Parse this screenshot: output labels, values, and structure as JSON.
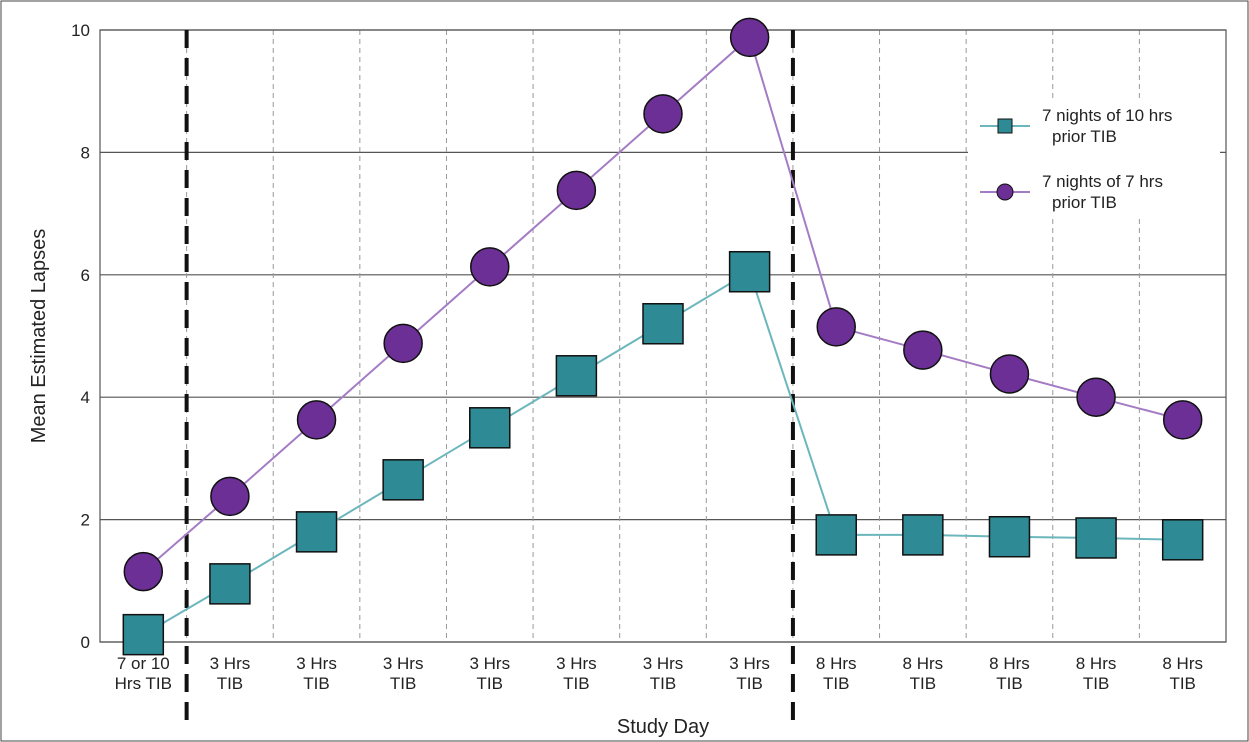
{
  "chart_data": {
    "type": "line",
    "xlabel": "Study Day",
    "ylabel": "Mean Estimated Lapses",
    "ylim": [
      0,
      10
    ],
    "yticks": [
      "0",
      "2",
      "4",
      "6",
      "8",
      "10"
    ],
    "grid": true,
    "legend_position": "top-right",
    "categories": [
      [
        "7 or 10",
        "Hrs TIB"
      ],
      [
        "3 Hrs",
        "TIB"
      ],
      [
        "3 Hrs",
        "TIB"
      ],
      [
        "3 Hrs",
        "TIB"
      ],
      [
        "3 Hrs",
        "TIB"
      ],
      [
        "3 Hrs",
        "TIB"
      ],
      [
        "3 Hrs",
        "TIB"
      ],
      [
        "3 Hrs",
        "TIB"
      ],
      [
        "8 Hrs",
        "TIB"
      ],
      [
        "8 Hrs",
        "TIB"
      ],
      [
        "8 Hrs",
        "TIB"
      ],
      [
        "8 Hrs",
        "TIB"
      ],
      [
        "8 Hrs",
        "TIB"
      ]
    ],
    "phase_dividers_after_index": [
      0,
      7
    ],
    "series": [
      {
        "name_lines": [
          "7 nights of 10 hrs",
          "prior TIB"
        ],
        "marker": "square",
        "marker_color": "#2e8a94",
        "line_color": "#6cb6bd",
        "values": [
          0.12,
          0.95,
          1.8,
          2.65,
          3.5,
          4.35,
          5.2,
          6.05,
          1.75,
          1.75,
          1.72,
          1.7,
          1.67
        ]
      },
      {
        "name_lines": [
          "7 nights of 7 hrs",
          "prior TIB"
        ],
        "marker": "circle",
        "marker_color": "#6b2f95",
        "line_color": "#a47cc4",
        "values": [
          1.15,
          2.38,
          3.63,
          4.88,
          6.13,
          7.38,
          8.63,
          9.88,
          5.15,
          4.77,
          4.38,
          4.0,
          3.63
        ]
      }
    ]
  }
}
